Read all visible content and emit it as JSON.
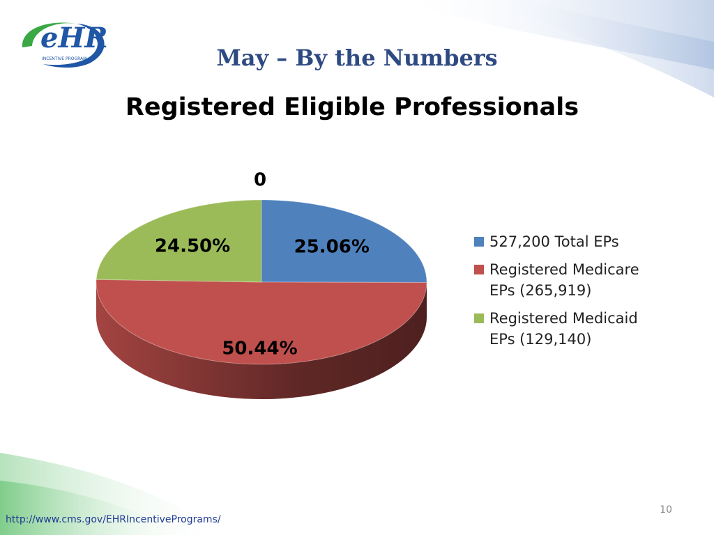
{
  "slide": {
    "title": "May – By the Numbers",
    "url": "http://www.cms.gov/EHRIncentivePrograms/",
    "page_number": "10",
    "logo": {
      "mark": "eHR",
      "caption": "INCENTIVE PROGRAM"
    }
  },
  "chart_data": {
    "type": "pie",
    "title": "Registered Eligible Professionals",
    "categories": [
      "527,200 Total EPs",
      "Registered Medicare EPs (265,919)",
      "Registered Medicaid EPs (129,140)"
    ],
    "values": [
      25.06,
      50.44,
      24.5
    ],
    "value_labels": [
      "25.06%",
      "50.44%",
      "24.50%"
    ],
    "colors": [
      "#4f81bd",
      "#c0504d",
      "#9bbb59"
    ],
    "annotations": [
      "0"
    ],
    "legend": "right"
  }
}
